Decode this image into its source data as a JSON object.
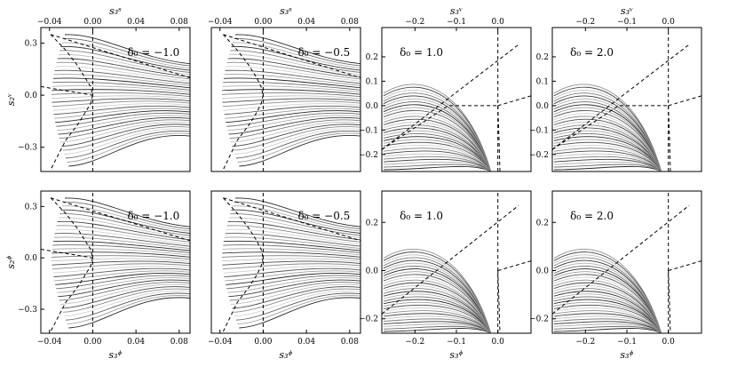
{
  "chart_data": [
    {
      "type": "line",
      "row": 0,
      "col": 0,
      "annotation": "δ₀ = −1.0",
      "top_axis": {
        "label": "s₃ˢ",
        "ticks": [
          "−0.04",
          "0.00",
          "0.04",
          "0.08"
        ]
      },
      "bottom_axis": {
        "ticks": []
      },
      "left_axis": {
        "label": "s₂ᵛ",
        "ticks": [
          "0.3",
          "0.0",
          "−0.3"
        ]
      },
      "xlim": [
        -0.048,
        0.09
      ],
      "ylim": [
        -0.44,
        0.39
      ],
      "separatrices": [
        {
          "x": [
            -0.039,
            -0.025,
            -0.014,
            -0.007,
            -0.002,
            0.0
          ],
          "y": [
            0.35,
            0.26,
            0.17,
            0.1,
            0.05,
            0.0
          ]
        },
        {
          "x": [
            0.0,
            -0.002,
            -0.007,
            -0.014,
            -0.025,
            -0.039
          ],
          "y": [
            0.0,
            -0.05,
            -0.1,
            -0.17,
            -0.26,
            -0.43
          ]
        },
        {
          "x": [
            -0.039,
            0.09
          ],
          "y": [
            0.35,
            0.1
          ]
        },
        {
          "x": [
            -0.048,
            0.0
          ],
          "y": [
            0.05,
            0.0
          ]
        },
        {
          "x": [
            0.0,
            0.0
          ],
          "y": [
            -0.44,
            0.39
          ]
        }
      ],
      "fan_curves": 34
    },
    {
      "type": "line",
      "row": 0,
      "col": 1,
      "annotation": "δ₀ = −0.5",
      "top_axis": {
        "label": "s₃ˢ",
        "ticks": [
          "−0.04",
          "0.00",
          "0.04",
          "0.08"
        ]
      },
      "bottom_axis": {
        "ticks": []
      },
      "left_axis": {
        "ticks": []
      },
      "xlim": [
        -0.048,
        0.09
      ],
      "ylim": [
        -0.44,
        0.39
      ],
      "separatrices": [
        {
          "x": [
            -0.037,
            -0.024,
            -0.013,
            -0.006,
            -0.002,
            0.0
          ],
          "y": [
            0.35,
            0.26,
            0.17,
            0.1,
            0.05,
            0.0
          ]
        },
        {
          "x": [
            0.0,
            -0.002,
            -0.006,
            -0.013,
            -0.024,
            -0.037
          ],
          "y": [
            0.0,
            -0.05,
            -0.1,
            -0.17,
            -0.26,
            -0.43
          ]
        },
        {
          "x": [
            -0.037,
            0.09
          ],
          "y": [
            0.35,
            0.1
          ]
        },
        {
          "x": [
            0.0,
            0.0
          ],
          "y": [
            -0.44,
            0.39
          ]
        }
      ],
      "fan_curves": 34
    },
    {
      "type": "line",
      "row": 0,
      "col": 2,
      "annotation": "δ₀ = 1.0",
      "top_axis": {
        "label": "s₃ᵛ",
        "ticks": [
          "−0.2",
          "−0.1",
          "0.0"
        ]
      },
      "bottom_axis": {
        "ticks": []
      },
      "left_axis": {
        "ticks": [
          "0.2",
          "0.1",
          "0.0",
          "−0.1",
          "−0.2"
        ]
      },
      "xlim": [
        -0.28,
        0.08
      ],
      "ylim": [
        -0.27,
        0.32
      ],
      "separatrices": [
        {
          "x": [
            -0.28,
            0.05
          ],
          "y": [
            -0.18,
            0.25
          ]
        },
        {
          "x": [
            -0.28,
            -0.12,
            0.0
          ],
          "y": [
            -0.18,
            0.0,
            0.0
          ]
        },
        {
          "x": [
            0.0,
            0.08
          ],
          "y": [
            0.0,
            0.04
          ]
        },
        {
          "x": [
            0.0,
            0.003,
            0.005
          ],
          "y": [
            0.0,
            -0.15,
            -0.27
          ]
        },
        {
          "x": [
            0.0,
            0.0
          ],
          "y": [
            -0.27,
            0.32
          ]
        }
      ],
      "fan_curves": 30
    },
    {
      "type": "line",
      "row": 0,
      "col": 3,
      "annotation": "δ₀ = 2.0",
      "top_axis": {
        "label": "s₃ᵛ",
        "ticks": [
          "−0.2",
          "−0.1",
          "0.0"
        ]
      },
      "bottom_axis": {
        "ticks": []
      },
      "left_axis": {
        "ticks": [
          "0.2",
          "0.1",
          "0.0",
          "−0.1",
          "−0.2"
        ]
      },
      "xlim": [
        -0.28,
        0.08
      ],
      "ylim": [
        -0.27,
        0.32
      ],
      "separatrices": [
        {
          "x": [
            -0.28,
            0.05
          ],
          "y": [
            -0.18,
            0.25
          ]
        },
        {
          "x": [
            -0.28,
            -0.12,
            0.0
          ],
          "y": [
            -0.18,
            0.0,
            0.0
          ]
        },
        {
          "x": [
            0.0,
            0.08
          ],
          "y": [
            0.0,
            0.04
          ]
        },
        {
          "x": [
            0.0,
            0.003,
            0.005
          ],
          "y": [
            0.0,
            -0.15,
            -0.27
          ]
        },
        {
          "x": [
            0.0,
            0.0
          ],
          "y": [
            -0.27,
            0.32
          ]
        }
      ],
      "fan_curves": 30
    },
    {
      "type": "line",
      "row": 1,
      "col": 0,
      "annotation": "δ₀ = −1.0",
      "top_axis": {
        "ticks": []
      },
      "bottom_axis": {
        "label": "s₃ᶲ",
        "ticks": [
          "−0.04",
          "0.00",
          "0.04",
          "0.08"
        ]
      },
      "left_axis": {
        "label": "s₂ᶲ",
        "ticks": [
          "0.3",
          "0.0",
          "−0.3"
        ]
      },
      "xlim": [
        -0.048,
        0.09
      ],
      "ylim": [
        -0.44,
        0.39
      ],
      "separatrices": [
        {
          "x": [
            -0.039,
            -0.025,
            -0.014,
            -0.007,
            -0.002,
            0.0
          ],
          "y": [
            0.35,
            0.26,
            0.17,
            0.1,
            0.05,
            0.0
          ]
        },
        {
          "x": [
            0.0,
            -0.002,
            -0.007,
            -0.014,
            -0.025,
            -0.039
          ],
          "y": [
            0.0,
            -0.05,
            -0.1,
            -0.17,
            -0.26,
            -0.43
          ]
        },
        {
          "x": [
            -0.039,
            0.09
          ],
          "y": [
            0.35,
            0.1
          ]
        },
        {
          "x": [
            -0.048,
            0.0
          ],
          "y": [
            0.05,
            0.0
          ]
        },
        {
          "x": [
            0.0,
            0.0
          ],
          "y": [
            -0.44,
            0.39
          ]
        }
      ],
      "fan_curves": 34
    },
    {
      "type": "line",
      "row": 1,
      "col": 1,
      "annotation": "δ₀ = −0.5",
      "top_axis": {
        "ticks": []
      },
      "bottom_axis": {
        "label": "s₃ᶲ",
        "ticks": [
          "−0.04",
          "0.00",
          "0.04",
          "0.08"
        ]
      },
      "left_axis": {
        "ticks": []
      },
      "xlim": [
        -0.048,
        0.09
      ],
      "ylim": [
        -0.44,
        0.39
      ],
      "separatrices": [
        {
          "x": [
            -0.037,
            -0.024,
            -0.013,
            -0.006,
            -0.002,
            0.0
          ],
          "y": [
            0.35,
            0.26,
            0.17,
            0.1,
            0.05,
            0.0
          ]
        },
        {
          "x": [
            0.0,
            -0.002,
            -0.006,
            -0.013,
            -0.024,
            -0.037
          ],
          "y": [
            0.0,
            -0.05,
            -0.1,
            -0.17,
            -0.26,
            -0.43
          ]
        },
        {
          "x": [
            -0.037,
            0.09
          ],
          "y": [
            0.35,
            0.1
          ]
        },
        {
          "x": [
            0.0,
            0.0
          ],
          "y": [
            -0.44,
            0.39
          ]
        }
      ],
      "fan_curves": 34
    },
    {
      "type": "line",
      "row": 1,
      "col": 2,
      "annotation": "δ₀ = 1.0",
      "top_axis": {
        "ticks": []
      },
      "bottom_axis": {
        "label": "s₃ᶲ",
        "ticks": [
          "−0.2",
          "−0.1",
          "0.0"
        ]
      },
      "left_axis": {
        "ticks": [
          "0.2",
          "0.0",
          "−0.2"
        ]
      },
      "xlim": [
        -0.28,
        0.08
      ],
      "ylim": [
        -0.26,
        0.33
      ],
      "separatrices": [
        {
          "x": [
            -0.28,
            0.05
          ],
          "y": [
            -0.18,
            0.27
          ]
        },
        {
          "x": [
            0.0,
            0.08
          ],
          "y": [
            0.0,
            0.04
          ]
        },
        {
          "x": [
            0.0,
            0.003,
            0.005
          ],
          "y": [
            0.0,
            -0.15,
            -0.26
          ]
        },
        {
          "x": [
            0.0,
            0.0
          ],
          "y": [
            -0.26,
            0.33
          ]
        }
      ],
      "fan_curves": 30
    },
    {
      "type": "line",
      "row": 1,
      "col": 3,
      "annotation": "δ₀ = 2.0",
      "top_axis": {
        "ticks": []
      },
      "bottom_axis": {
        "label": "s₃ᶲ",
        "ticks": [
          "−0.2",
          "−0.1",
          "0.0"
        ]
      },
      "left_axis": {
        "ticks": [
          "0.2",
          "0.0",
          "−0.2"
        ]
      },
      "xlim": [
        -0.28,
        0.08
      ],
      "ylim": [
        -0.26,
        0.33
      ],
      "separatrices": [
        {
          "x": [
            -0.28,
            0.05
          ],
          "y": [
            -0.18,
            0.27
          ]
        },
        {
          "x": [
            0.0,
            0.08
          ],
          "y": [
            0.0,
            0.04
          ]
        },
        {
          "x": [
            0.0,
            0.003,
            0.005
          ],
          "y": [
            0.0,
            -0.15,
            -0.26
          ]
        },
        {
          "x": [
            0.0,
            0.0
          ],
          "y": [
            -0.26,
            0.33
          ]
        }
      ],
      "fan_curves": 30
    }
  ]
}
